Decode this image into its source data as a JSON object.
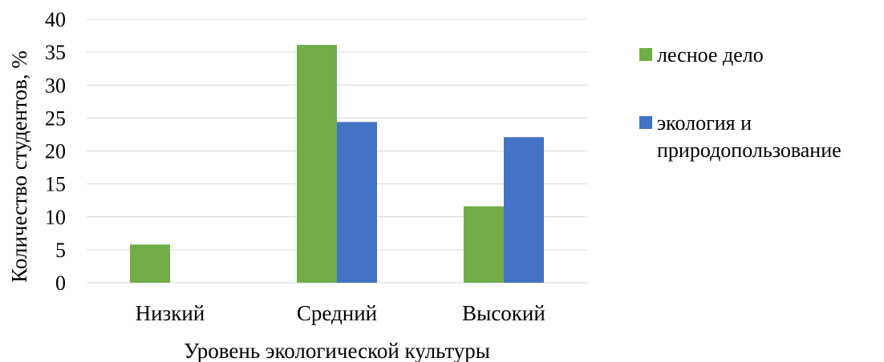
{
  "chart_data": {
    "type": "bar",
    "categories": [
      "Низкий",
      "Средний",
      "Высокий"
    ],
    "series": [
      {
        "name": "лесное дело",
        "values": [
          5.8,
          36.1,
          11.6
        ],
        "color": "#70ad47"
      },
      {
        "name": "экология и природопользование",
        "values": [
          0,
          24.4,
          22.1
        ],
        "color": "#4472c4"
      }
    ],
    "xlabel": "Уровень экологической культуры",
    "ylabel": "Количество студентов, %",
    "ylim": [
      0,
      40
    ],
    "yticks": [
      0,
      5,
      10,
      15,
      20,
      25,
      30,
      35,
      40
    ],
    "grid": true,
    "legend_position": "right"
  },
  "legend": {
    "items": [
      {
        "lines": [
          "лесное дело"
        ]
      },
      {
        "lines": [
          "экология и",
          "природопользование"
        ]
      }
    ]
  }
}
